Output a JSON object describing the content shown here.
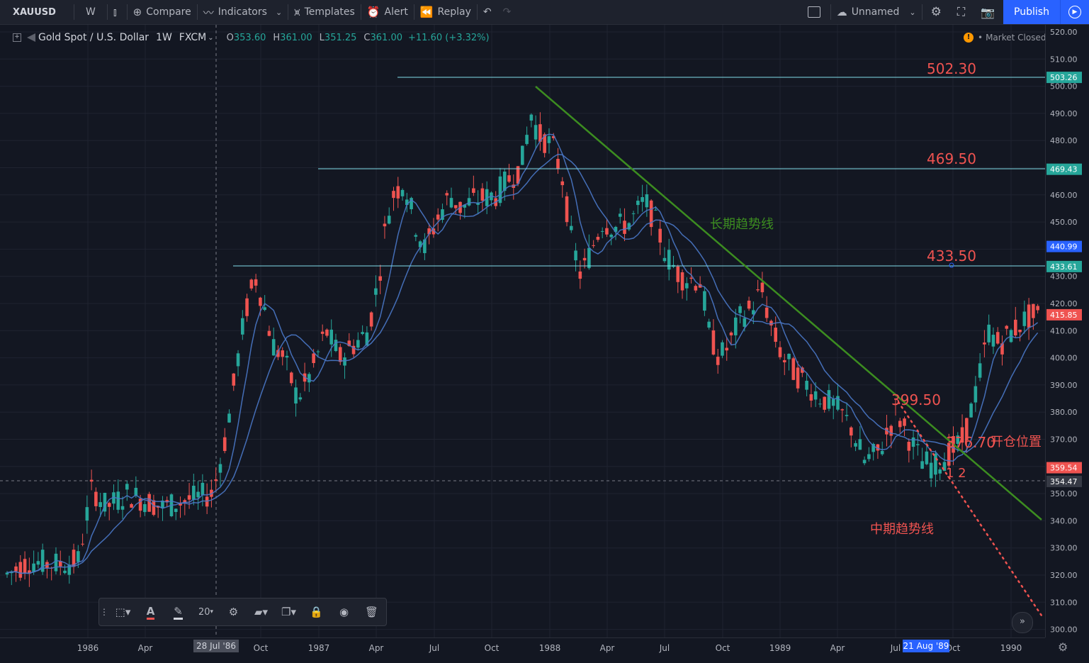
{
  "header": {
    "symbol": "XAUUSD",
    "interval": "W",
    "compare": "Compare",
    "indicators": "Indicators",
    "templates": "Templates",
    "alert": "Alert",
    "replay": "Replay",
    "layout_name": "Unnamed",
    "publish": "Publish"
  },
  "legend": {
    "title": "Gold Spot / U.S. Dollar",
    "interval": "1W",
    "source": "FXCM",
    "o_label": "O",
    "o": "353.60",
    "h_label": "H",
    "h": "361.00",
    "l_label": "L",
    "l": "351.25",
    "c_label": "C",
    "c": "361.00",
    "change": "+11.60 (+3.32%)"
  },
  "market_status": "Market Closed",
  "annotations": {
    "level_1": "502.30",
    "level_2": "469.50",
    "level_3": "433.50",
    "level_4": "399.50",
    "level_5": "376.70",
    "long_trend": "长期趋势线",
    "mid_trend": "中期趋势线",
    "entry": "开仓位置",
    "marks": "1 2"
  },
  "yaxis": {
    "ticks": [
      "520.00",
      "510.00",
      "500.00",
      "490.00",
      "480.00",
      "470.00",
      "460.00",
      "450.00",
      "440.00",
      "430.00",
      "420.00",
      "410.00",
      "400.00",
      "390.00",
      "380.00",
      "370.00",
      "360.00",
      "350.00",
      "340.00",
      "330.00",
      "320.00",
      "310.00",
      "300.00"
    ],
    "badges": [
      {
        "value": "503.26",
        "bg": "#26a69a"
      },
      {
        "value": "469.43",
        "bg": "#26a69a"
      },
      {
        "value": "440.99",
        "bg": "#2962ff"
      },
      {
        "value": "433.61",
        "bg": "#26a69a"
      },
      {
        "value": "415.85",
        "bg": "#ef5350"
      },
      {
        "value": "359.54",
        "bg": "#ef5350"
      },
      {
        "value": "354.47",
        "bg": "#363a45"
      }
    ]
  },
  "xaxis": {
    "ticks": [
      "1986",
      "Apr",
      "Oct",
      "1987",
      "Apr",
      "Jul",
      "Oct",
      "1988",
      "Apr",
      "Jul",
      "Oct",
      "1989",
      "Apr",
      "Jul",
      "Oct",
      "1990"
    ],
    "cursor_labels": [
      "28 Jul '86",
      "21 Aug '89"
    ]
  },
  "draw_toolbar": {
    "width": "20"
  },
  "colors": {
    "up": "#26a69a",
    "down": "#ef5350",
    "ma": "#4a78c8",
    "trend_long": "#3c8d20",
    "trend_mid": "#ef5350",
    "hline": "#80deea"
  }
}
